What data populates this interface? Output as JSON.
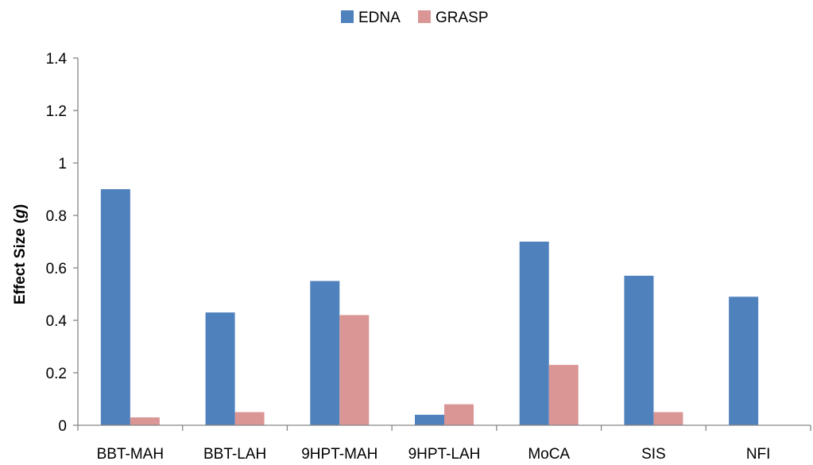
{
  "chart_data": {
    "type": "bar",
    "title": "",
    "xlabel": "",
    "ylabel": "Effect Size",
    "ylabel_symbol": "g",
    "categories": [
      "BBT-MAH",
      "BBT-LAH",
      "9HPT-MAH",
      "9HPT-LAH",
      "MoCA",
      "SIS",
      "NFI"
    ],
    "series": [
      {
        "name": "EDNA",
        "color": "#4F81BD",
        "values": [
          0.9,
          0.43,
          0.55,
          0.04,
          0.7,
          0.57,
          0.49
        ]
      },
      {
        "name": "GRASP",
        "color": "#D99694",
        "values": [
          0.03,
          0.05,
          0.42,
          0.08,
          0.23,
          0.05,
          null
        ]
      }
    ],
    "ylim": [
      0,
      1.4
    ],
    "yticks": [
      "0",
      "0.2",
      "0.4",
      "0.6",
      "0.8",
      "1",
      "1.2",
      "1.4"
    ],
    "grid": false,
    "legend_position": "top-center"
  }
}
